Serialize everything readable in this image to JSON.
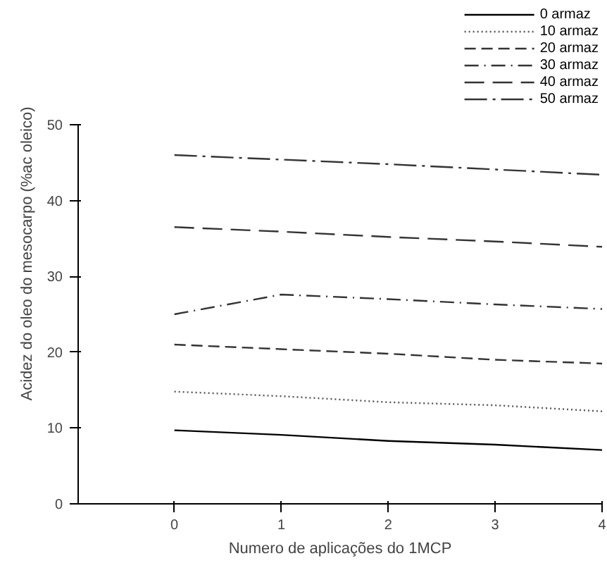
{
  "chart_data": {
    "type": "line",
    "xlabel": "Numero de aplicações do 1MCP",
    "ylabel": "Acidez do oleo do mesocarpo (%ac oleico)",
    "x": [
      0,
      1,
      2,
      3,
      4
    ],
    "series": [
      {
        "name": "0 armaz",
        "color": "#000000",
        "line_style": "solid",
        "values": [
          9.7,
          9.1,
          8.3,
          7.8,
          7.1
        ]
      },
      {
        "name": "10 armaz",
        "color": "#555555",
        "line_style": "dotted",
        "values": [
          14.8,
          14.2,
          13.4,
          13.0,
          12.2
        ]
      },
      {
        "name": "20 armaz",
        "color": "#333333",
        "line_style": "dashed",
        "values": [
          21.0,
          20.4,
          19.8,
          19.0,
          18.5
        ]
      },
      {
        "name": "30 armaz",
        "color": "#333333",
        "line_style": "dashdot",
        "values": [
          25.0,
          27.6,
          27.0,
          26.3,
          25.7
        ]
      },
      {
        "name": "40 armaz",
        "color": "#333333",
        "line_style": "longdash",
        "values": [
          36.5,
          35.9,
          35.2,
          34.6,
          33.9
        ]
      },
      {
        "name": "50 armaz",
        "color": "#333333",
        "line_style": "longdashdot",
        "values": [
          46.0,
          45.4,
          44.8,
          44.1,
          43.4
        ]
      }
    ],
    "xlim": [
      -0.9,
      4
    ],
    "xticks": [
      0,
      1,
      2,
      3,
      4
    ],
    "ylim": [
      0,
      50
    ],
    "yticks": [
      0,
      10,
      20,
      30,
      40,
      50
    ],
    "grid": false,
    "legend": "top right",
    "marker": "none"
  }
}
